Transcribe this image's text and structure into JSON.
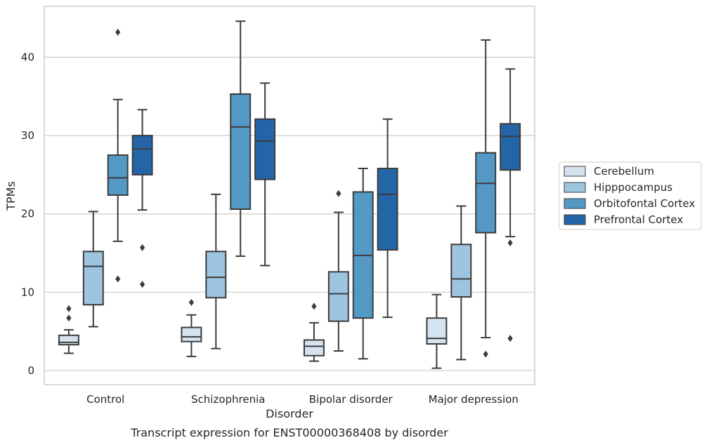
{
  "chart_data": {
    "type": "box",
    "caption": "Transcript expression for ENST00000368408 by disorder",
    "xlabel": "Disorder",
    "ylabel": "TPMs",
    "ylim": [
      -1.8,
      46.5
    ],
    "yticks": [
      0,
      10,
      20,
      30,
      40
    ],
    "grid": "horizontal",
    "legend_placement": "right",
    "categories": [
      "Control",
      "Schizophrenia",
      "Bipolar disorder",
      "Major depression"
    ],
    "series": [
      {
        "name": "Cerebellum",
        "color": "#d5e3f1",
        "boxes": [
          {
            "whislo": 2.2,
            "q1": 3.3,
            "med": 3.6,
            "q3": 4.5,
            "whishi": 5.2,
            "fliers": [
              6.7,
              7.9
            ]
          },
          {
            "whislo": 1.8,
            "q1": 3.7,
            "med": 4.3,
            "q3": 5.5,
            "whishi": 7.1,
            "fliers": [
              8.7
            ]
          },
          {
            "whislo": 1.2,
            "q1": 1.9,
            "med": 3.1,
            "q3": 3.9,
            "whishi": 6.1,
            "fliers": [
              8.2
            ]
          },
          {
            "whislo": 0.3,
            "q1": 3.4,
            "med": 4.1,
            "q3": 6.7,
            "whishi": 9.7,
            "fliers": []
          }
        ]
      },
      {
        "name": "Hipppocampus",
        "color": "#9dc5e0",
        "boxes": [
          {
            "whislo": 5.6,
            "q1": 8.4,
            "med": 13.3,
            "q3": 15.2,
            "whishi": 20.3,
            "fliers": []
          },
          {
            "whislo": 2.8,
            "q1": 9.3,
            "med": 11.9,
            "q3": 15.2,
            "whishi": 22.5,
            "fliers": []
          },
          {
            "whislo": 2.5,
            "q1": 6.3,
            "med": 9.8,
            "q3": 12.6,
            "whishi": 20.2,
            "fliers": [
              22.6
            ]
          },
          {
            "whislo": 1.4,
            "q1": 9.4,
            "med": 11.7,
            "q3": 16.1,
            "whishi": 21.0,
            "fliers": []
          }
        ]
      },
      {
        "name": "Orbitofontal Cortex",
        "color": "#5499c6",
        "boxes": [
          {
            "whislo": 16.5,
            "q1": 22.4,
            "med": 24.6,
            "q3": 27.5,
            "whishi": 34.6,
            "fliers": [
              11.7,
              43.2
            ]
          },
          {
            "whislo": 14.6,
            "q1": 20.6,
            "med": 31.1,
            "q3": 35.3,
            "whishi": 44.6,
            "fliers": []
          },
          {
            "whislo": 1.5,
            "q1": 6.7,
            "med": 14.7,
            "q3": 22.8,
            "whishi": 25.8,
            "fliers": []
          },
          {
            "whislo": 4.2,
            "q1": 17.6,
            "med": 23.9,
            "q3": 27.8,
            "whishi": 42.2,
            "fliers": [
              2.1
            ]
          }
        ]
      },
      {
        "name": "Prefrontal Cortex",
        "color": "#2465a8",
        "boxes": [
          {
            "whislo": 20.5,
            "q1": 25.0,
            "med": 28.3,
            "q3": 30.0,
            "whishi": 33.3,
            "fliers": [
              11.0,
              15.7
            ]
          },
          {
            "whislo": 13.4,
            "q1": 24.4,
            "med": 29.3,
            "q3": 32.1,
            "whishi": 36.7,
            "fliers": []
          },
          {
            "whislo": 6.8,
            "q1": 15.4,
            "med": 22.5,
            "q3": 25.8,
            "whishi": 32.1,
            "fliers": []
          },
          {
            "whislo": 17.1,
            "q1": 25.6,
            "med": 29.9,
            "q3": 31.5,
            "whishi": 38.5,
            "fliers": [
              4.1,
              16.3
            ]
          }
        ]
      }
    ]
  }
}
